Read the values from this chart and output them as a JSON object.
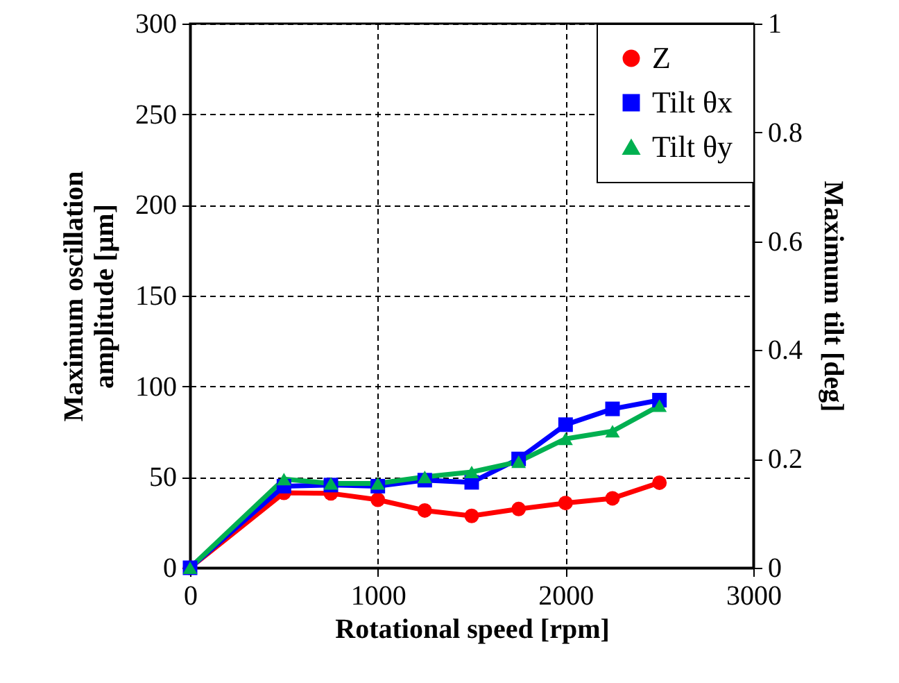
{
  "chart_data": {
    "type": "line",
    "xlabel": "Rotational speed [rpm]",
    "ylabel": "Maximum oscillation amplitude [μm]",
    "y2label": "Maximum tilt [deg]",
    "x": [
      0,
      500,
      750,
      1000,
      1250,
      1500,
      1750,
      2000,
      2250,
      2500
    ],
    "series": [
      {
        "name": "Z",
        "color": "#ff0000",
        "marker": "circle",
        "values": [
          0,
          41.3,
          41,
          37.5,
          31.6,
          28.6,
          32.4,
          35.7,
          38.3,
          46.9
        ]
      },
      {
        "name": "Tilt θx",
        "color": "#0000ff",
        "marker": "square",
        "axis": "y2",
        "values": [
          0,
          0.15,
          0.152,
          0.15,
          0.161,
          0.157,
          0.2,
          0.263,
          0.292,
          0.308
        ]
      },
      {
        "name": "Tilt θy",
        "color": "#00b050",
        "marker": "triangle",
        "axis": "y2",
        "values": [
          0,
          0.163,
          0.155,
          0.155,
          0.167,
          0.176,
          0.195,
          0.237,
          0.251,
          0.298
        ]
      }
    ],
    "xlim": [
      0,
      3000
    ],
    "xticks": [
      0,
      1000,
      2000,
      3000
    ],
    "ylim": [
      0,
      300
    ],
    "yticks": [
      0,
      50,
      100,
      150,
      200,
      250,
      300
    ],
    "y2lim": [
      0,
      1
    ],
    "y2ticks": [
      0,
      0.2,
      0.4,
      0.6,
      0.8,
      1
    ],
    "grid": true,
    "legend": "top right"
  }
}
